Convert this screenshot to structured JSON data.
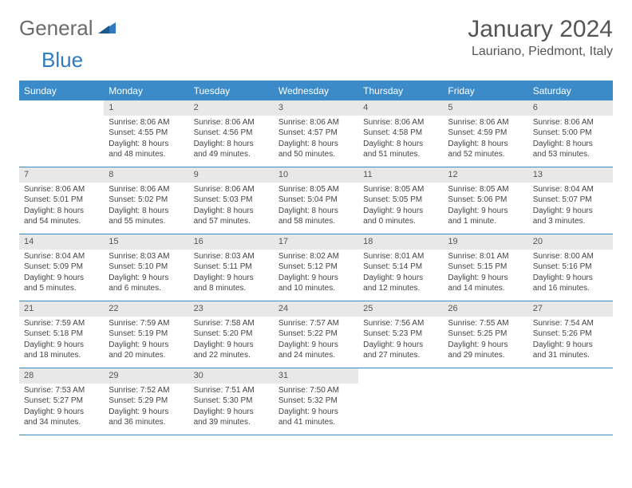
{
  "logo": {
    "text_general": "General",
    "text_blue": "Blue"
  },
  "title": "January 2024",
  "location": "Lauriano, Piedmont, Italy",
  "colors": {
    "header_bg": "#3b8bc9",
    "header_text": "#ffffff",
    "daynum_bg": "#e8e8e8",
    "border": "#3b8bc9",
    "body_text": "#444444",
    "title_text": "#555555",
    "logo_gray": "#6b6b6b",
    "logo_blue": "#2f7bbf"
  },
  "day_headers": [
    "Sunday",
    "Monday",
    "Tuesday",
    "Wednesday",
    "Thursday",
    "Friday",
    "Saturday"
  ],
  "weeks": [
    [
      {
        "empty": true
      },
      {
        "day": "1",
        "sunrise": "Sunrise: 8:06 AM",
        "sunset": "Sunset: 4:55 PM",
        "dl1": "Daylight: 8 hours",
        "dl2": "and 48 minutes."
      },
      {
        "day": "2",
        "sunrise": "Sunrise: 8:06 AM",
        "sunset": "Sunset: 4:56 PM",
        "dl1": "Daylight: 8 hours",
        "dl2": "and 49 minutes."
      },
      {
        "day": "3",
        "sunrise": "Sunrise: 8:06 AM",
        "sunset": "Sunset: 4:57 PM",
        "dl1": "Daylight: 8 hours",
        "dl2": "and 50 minutes."
      },
      {
        "day": "4",
        "sunrise": "Sunrise: 8:06 AM",
        "sunset": "Sunset: 4:58 PM",
        "dl1": "Daylight: 8 hours",
        "dl2": "and 51 minutes."
      },
      {
        "day": "5",
        "sunrise": "Sunrise: 8:06 AM",
        "sunset": "Sunset: 4:59 PM",
        "dl1": "Daylight: 8 hours",
        "dl2": "and 52 minutes."
      },
      {
        "day": "6",
        "sunrise": "Sunrise: 8:06 AM",
        "sunset": "Sunset: 5:00 PM",
        "dl1": "Daylight: 8 hours",
        "dl2": "and 53 minutes."
      }
    ],
    [
      {
        "day": "7",
        "sunrise": "Sunrise: 8:06 AM",
        "sunset": "Sunset: 5:01 PM",
        "dl1": "Daylight: 8 hours",
        "dl2": "and 54 minutes."
      },
      {
        "day": "8",
        "sunrise": "Sunrise: 8:06 AM",
        "sunset": "Sunset: 5:02 PM",
        "dl1": "Daylight: 8 hours",
        "dl2": "and 55 minutes."
      },
      {
        "day": "9",
        "sunrise": "Sunrise: 8:06 AM",
        "sunset": "Sunset: 5:03 PM",
        "dl1": "Daylight: 8 hours",
        "dl2": "and 57 minutes."
      },
      {
        "day": "10",
        "sunrise": "Sunrise: 8:05 AM",
        "sunset": "Sunset: 5:04 PM",
        "dl1": "Daylight: 8 hours",
        "dl2": "and 58 minutes."
      },
      {
        "day": "11",
        "sunrise": "Sunrise: 8:05 AM",
        "sunset": "Sunset: 5:05 PM",
        "dl1": "Daylight: 9 hours",
        "dl2": "and 0 minutes."
      },
      {
        "day": "12",
        "sunrise": "Sunrise: 8:05 AM",
        "sunset": "Sunset: 5:06 PM",
        "dl1": "Daylight: 9 hours",
        "dl2": "and 1 minute."
      },
      {
        "day": "13",
        "sunrise": "Sunrise: 8:04 AM",
        "sunset": "Sunset: 5:07 PM",
        "dl1": "Daylight: 9 hours",
        "dl2": "and 3 minutes."
      }
    ],
    [
      {
        "day": "14",
        "sunrise": "Sunrise: 8:04 AM",
        "sunset": "Sunset: 5:09 PM",
        "dl1": "Daylight: 9 hours",
        "dl2": "and 5 minutes."
      },
      {
        "day": "15",
        "sunrise": "Sunrise: 8:03 AM",
        "sunset": "Sunset: 5:10 PM",
        "dl1": "Daylight: 9 hours",
        "dl2": "and 6 minutes."
      },
      {
        "day": "16",
        "sunrise": "Sunrise: 8:03 AM",
        "sunset": "Sunset: 5:11 PM",
        "dl1": "Daylight: 9 hours",
        "dl2": "and 8 minutes."
      },
      {
        "day": "17",
        "sunrise": "Sunrise: 8:02 AM",
        "sunset": "Sunset: 5:12 PM",
        "dl1": "Daylight: 9 hours",
        "dl2": "and 10 minutes."
      },
      {
        "day": "18",
        "sunrise": "Sunrise: 8:01 AM",
        "sunset": "Sunset: 5:14 PM",
        "dl1": "Daylight: 9 hours",
        "dl2": "and 12 minutes."
      },
      {
        "day": "19",
        "sunrise": "Sunrise: 8:01 AM",
        "sunset": "Sunset: 5:15 PM",
        "dl1": "Daylight: 9 hours",
        "dl2": "and 14 minutes."
      },
      {
        "day": "20",
        "sunrise": "Sunrise: 8:00 AM",
        "sunset": "Sunset: 5:16 PM",
        "dl1": "Daylight: 9 hours",
        "dl2": "and 16 minutes."
      }
    ],
    [
      {
        "day": "21",
        "sunrise": "Sunrise: 7:59 AM",
        "sunset": "Sunset: 5:18 PM",
        "dl1": "Daylight: 9 hours",
        "dl2": "and 18 minutes."
      },
      {
        "day": "22",
        "sunrise": "Sunrise: 7:59 AM",
        "sunset": "Sunset: 5:19 PM",
        "dl1": "Daylight: 9 hours",
        "dl2": "and 20 minutes."
      },
      {
        "day": "23",
        "sunrise": "Sunrise: 7:58 AM",
        "sunset": "Sunset: 5:20 PM",
        "dl1": "Daylight: 9 hours",
        "dl2": "and 22 minutes."
      },
      {
        "day": "24",
        "sunrise": "Sunrise: 7:57 AM",
        "sunset": "Sunset: 5:22 PM",
        "dl1": "Daylight: 9 hours",
        "dl2": "and 24 minutes."
      },
      {
        "day": "25",
        "sunrise": "Sunrise: 7:56 AM",
        "sunset": "Sunset: 5:23 PM",
        "dl1": "Daylight: 9 hours",
        "dl2": "and 27 minutes."
      },
      {
        "day": "26",
        "sunrise": "Sunrise: 7:55 AM",
        "sunset": "Sunset: 5:25 PM",
        "dl1": "Daylight: 9 hours",
        "dl2": "and 29 minutes."
      },
      {
        "day": "27",
        "sunrise": "Sunrise: 7:54 AM",
        "sunset": "Sunset: 5:26 PM",
        "dl1": "Daylight: 9 hours",
        "dl2": "and 31 minutes."
      }
    ],
    [
      {
        "day": "28",
        "sunrise": "Sunrise: 7:53 AM",
        "sunset": "Sunset: 5:27 PM",
        "dl1": "Daylight: 9 hours",
        "dl2": "and 34 minutes."
      },
      {
        "day": "29",
        "sunrise": "Sunrise: 7:52 AM",
        "sunset": "Sunset: 5:29 PM",
        "dl1": "Daylight: 9 hours",
        "dl2": "and 36 minutes."
      },
      {
        "day": "30",
        "sunrise": "Sunrise: 7:51 AM",
        "sunset": "Sunset: 5:30 PM",
        "dl1": "Daylight: 9 hours",
        "dl2": "and 39 minutes."
      },
      {
        "day": "31",
        "sunrise": "Sunrise: 7:50 AM",
        "sunset": "Sunset: 5:32 PM",
        "dl1": "Daylight: 9 hours",
        "dl2": "and 41 minutes."
      },
      {
        "empty": true
      },
      {
        "empty": true
      },
      {
        "empty": true
      }
    ]
  ]
}
